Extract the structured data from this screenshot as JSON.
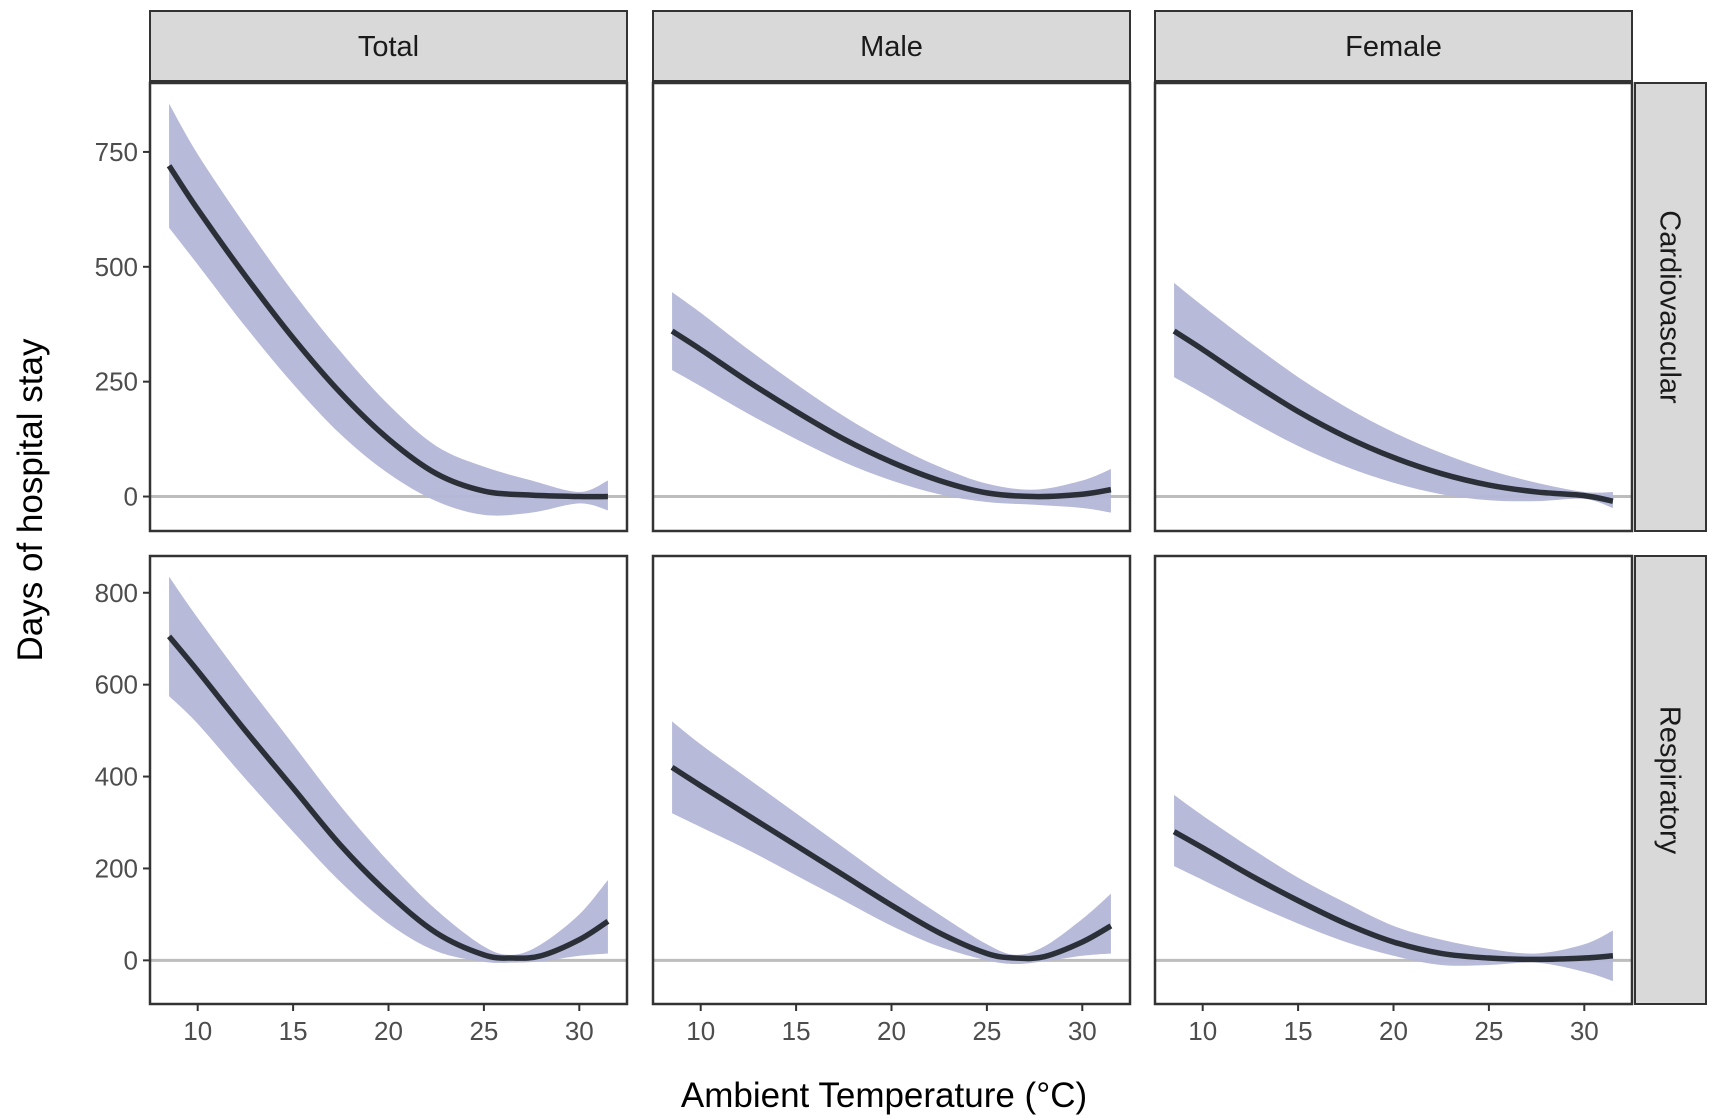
{
  "colors": {
    "ribbon": "#b3b6d6",
    "line": "#2b2f38",
    "zero_line": "#bdbdbd",
    "strip_fill": "#d9d9d9",
    "panel_border": "#333333"
  },
  "chart_data": {
    "type": "line",
    "xlabel": "Ambient Temperature (°C)",
    "ylabel": "Days of hospital stay",
    "columns": [
      "Total",
      "Male",
      "Female"
    ],
    "rows": [
      "Cardiovascular",
      "Respiratory"
    ],
    "x_range": [
      7.5,
      32.5
    ],
    "x_ticks": [
      10,
      15,
      20,
      25,
      30
    ],
    "row_axes": [
      {
        "y_range": [
          -75,
          900
        ],
        "y_ticks": [
          0,
          250,
          500,
          750
        ]
      },
      {
        "y_range": [
          -95,
          880
        ],
        "y_ticks": [
          0,
          200,
          400,
          600,
          800
        ]
      }
    ],
    "panels": [
      {
        "column": "Total",
        "row": "Cardiovascular",
        "x": [
          8.5,
          10,
          12.5,
          15,
          17.5,
          20,
          22.5,
          25,
          27.5,
          30,
          31.5
        ],
        "y": [
          720,
          625,
          480,
          345,
          225,
          125,
          50,
          12,
          3,
          0,
          0
        ],
        "lower": [
          585,
          505,
          370,
          245,
          135,
          50,
          -10,
          -40,
          -35,
          -15,
          -30
        ],
        "upper": [
          855,
          745,
          590,
          445,
          315,
          200,
          110,
          65,
          35,
          10,
          35
        ]
      },
      {
        "column": "Male",
        "row": "Cardiovascular",
        "x": [
          8.5,
          10,
          12.5,
          15,
          17.5,
          20,
          22.5,
          25,
          27.5,
          30,
          31.5
        ],
        "y": [
          360,
          320,
          250,
          185,
          125,
          75,
          35,
          8,
          0,
          5,
          15
        ],
        "lower": [
          275,
          240,
          180,
          125,
          75,
          35,
          5,
          -12,
          -18,
          -25,
          -35
        ],
        "upper": [
          445,
          400,
          320,
          245,
          175,
          115,
          65,
          28,
          15,
          35,
          60
        ]
      },
      {
        "column": "Female",
        "row": "Cardiovascular",
        "x": [
          8.5,
          10,
          12.5,
          15,
          17.5,
          20,
          22.5,
          25,
          27.5,
          30,
          31.5
        ],
        "y": [
          360,
          320,
          250,
          185,
          130,
          85,
          50,
          25,
          10,
          2,
          -10
        ],
        "lower": [
          260,
          225,
          165,
          110,
          65,
          30,
          5,
          -8,
          -10,
          -5,
          -25
        ],
        "upper": [
          465,
          415,
          335,
          260,
          195,
          140,
          95,
          58,
          30,
          10,
          10
        ]
      },
      {
        "column": "Total",
        "row": "Respiratory",
        "x": [
          8.5,
          10,
          12.5,
          15,
          17.5,
          20,
          22.5,
          25,
          26.5,
          28,
          30,
          31.5
        ],
        "y": [
          705,
          630,
          500,
          375,
          250,
          145,
          60,
          12,
          5,
          10,
          45,
          85
        ],
        "lower": [
          575,
          515,
          395,
          280,
          170,
          80,
          20,
          -3,
          -5,
          -2,
          10,
          15
        ],
        "upper": [
          835,
          745,
          605,
          470,
          335,
          215,
          110,
          30,
          12,
          35,
          100,
          175
        ]
      },
      {
        "column": "Male",
        "row": "Respiratory",
        "x": [
          8.5,
          10,
          12.5,
          15,
          17.5,
          20,
          22.5,
          25,
          26.5,
          28,
          30,
          31.5
        ],
        "y": [
          420,
          380,
          315,
          250,
          185,
          120,
          60,
          15,
          5,
          8,
          40,
          75
        ],
        "lower": [
          320,
          290,
          240,
          185,
          130,
          75,
          30,
          0,
          -8,
          -2,
          10,
          15
        ],
        "upper": [
          520,
          470,
          395,
          320,
          245,
          170,
          100,
          35,
          12,
          30,
          90,
          145
        ]
      },
      {
        "column": "Female",
        "row": "Respiratory",
        "x": [
          8.5,
          10,
          12.5,
          15,
          17.5,
          20,
          22.5,
          25,
          27.5,
          30,
          31.5
        ],
        "y": [
          280,
          245,
          185,
          130,
          80,
          40,
          15,
          5,
          2,
          5,
          10
        ],
        "lower": [
          205,
          175,
          125,
          80,
          40,
          10,
          -10,
          -10,
          -5,
          -25,
          -45
        ],
        "upper": [
          360,
          315,
          245,
          180,
          125,
          75,
          45,
          25,
          15,
          35,
          65
        ]
      }
    ]
  }
}
